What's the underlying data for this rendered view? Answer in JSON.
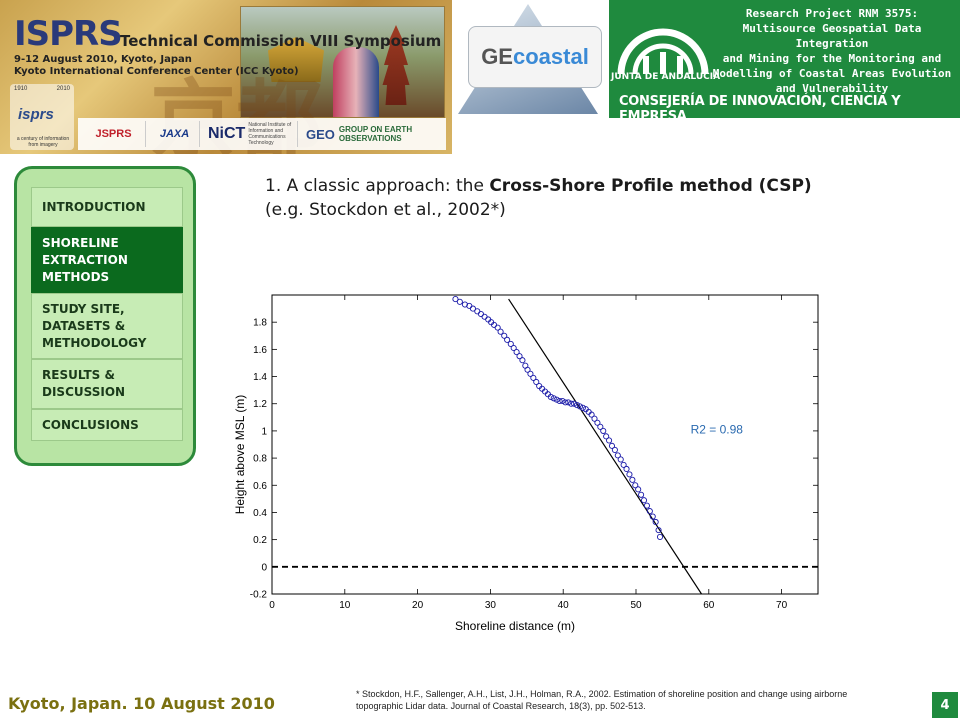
{
  "header": {
    "isprs_title": "ISPRS",
    "isprs_subtitle": "Technical Commission VIII Symposium",
    "isprs_dates": "9-12 August 2010, Kyoto, Japan",
    "isprs_venue": "Kyoto International Conference Center (ICC Kyoto)",
    "isprs_logo_name": "isprs",
    "isprs_logo_years": [
      "1910",
      "2010"
    ],
    "isprs_logo_motto": "a century of information from imagery",
    "kanji_watermark": "京都",
    "sponsors": [
      "JSPRS",
      "JAXA",
      "NiCT",
      "GROUP ON EARTH OBSERVATIONS"
    ],
    "sponsor_nict_caption": "National Institute of Information and Communications Technology",
    "sponsor_geo_mark": "GEO",
    "gecoastal_logo": [
      "GE",
      "coastal"
    ],
    "junta_name": "JUNTA DE ANDALUCIA",
    "project_lines": [
      "Research Project RNM 3575:",
      "Multisource Geospatial Data Integration",
      "and Mining for  the Monitoring and",
      "Modelling of Coastal Areas Evolution",
      "and  Vulnerability"
    ],
    "department": "CONSEJERÍA DE INNOVACIÓN, CIENCIA Y EMPRESA"
  },
  "nav": {
    "items": [
      {
        "label": "INTRODUCTION",
        "active": false
      },
      {
        "label": "SHORELINE EXTRACTION METHODS",
        "active": true
      },
      {
        "label": "STUDY SITE, DATASETS & METHODOLOGY",
        "active": false
      },
      {
        "label": "RESULTS & DISCUSSION",
        "active": false
      },
      {
        "label": "CONCLUSIONS",
        "active": false
      }
    ]
  },
  "title": {
    "prefix": "1. A  classic approach: the ",
    "bold": "Cross-Shore Profile method (CSP)",
    "suffix": " (e.g. Stockdon et al., 2002*)"
  },
  "chart_data": {
    "type": "scatter",
    "xlabel": "Shoreline distance (m)",
    "ylabel": "Height above MSL (m)",
    "xlim": [
      0,
      75
    ],
    "ylim": [
      -0.2,
      2.0
    ],
    "xticks": [
      0,
      10,
      20,
      30,
      40,
      50,
      60,
      70
    ],
    "yticks": [
      -0.2,
      0,
      0.2,
      0.4,
      0.6,
      0.8,
      1,
      1.2,
      1.4,
      1.6,
      1.8
    ],
    "annotation": "R2 = 0.98",
    "annotation_sup": "2",
    "grid": false,
    "points": [
      [
        25.2,
        1.97
      ],
      [
        25.8,
        1.95
      ],
      [
        26.5,
        1.93
      ],
      [
        27.1,
        1.92
      ],
      [
        27.6,
        1.9
      ],
      [
        28.2,
        1.88
      ],
      [
        28.7,
        1.86
      ],
      [
        29.2,
        1.84
      ],
      [
        29.7,
        1.82
      ],
      [
        30.1,
        1.8
      ],
      [
        30.5,
        1.78
      ],
      [
        31.0,
        1.76
      ],
      [
        31.4,
        1.73
      ],
      [
        31.9,
        1.7
      ],
      [
        32.3,
        1.67
      ],
      [
        32.8,
        1.64
      ],
      [
        33.2,
        1.61
      ],
      [
        33.6,
        1.58
      ],
      [
        34.0,
        1.55
      ],
      [
        34.4,
        1.52
      ],
      [
        34.8,
        1.48
      ],
      [
        35.1,
        1.45
      ],
      [
        35.5,
        1.42
      ],
      [
        35.9,
        1.39
      ],
      [
        36.3,
        1.36
      ],
      [
        36.7,
        1.33
      ],
      [
        37.1,
        1.31
      ],
      [
        37.5,
        1.29
      ],
      [
        37.9,
        1.27
      ],
      [
        38.3,
        1.25
      ],
      [
        38.7,
        1.24
      ],
      [
        39.1,
        1.23
      ],
      [
        39.5,
        1.22
      ],
      [
        39.9,
        1.22
      ],
      [
        40.3,
        1.21
      ],
      [
        40.7,
        1.21
      ],
      [
        41.1,
        1.2
      ],
      [
        41.5,
        1.2
      ],
      [
        41.9,
        1.19
      ],
      [
        42.3,
        1.18
      ],
      [
        42.7,
        1.17
      ],
      [
        43.1,
        1.16
      ],
      [
        43.5,
        1.14
      ],
      [
        43.9,
        1.12
      ],
      [
        44.3,
        1.09
      ],
      [
        44.7,
        1.06
      ],
      [
        45.1,
        1.03
      ],
      [
        45.5,
        1.0
      ],
      [
        45.9,
        0.96
      ],
      [
        46.3,
        0.93
      ],
      [
        46.7,
        0.89
      ],
      [
        47.1,
        0.86
      ],
      [
        47.5,
        0.82
      ],
      [
        47.9,
        0.79
      ],
      [
        48.3,
        0.75
      ],
      [
        48.7,
        0.72
      ],
      [
        49.1,
        0.68
      ],
      [
        49.5,
        0.64
      ],
      [
        49.9,
        0.6
      ],
      [
        50.3,
        0.57
      ],
      [
        50.7,
        0.53
      ],
      [
        51.1,
        0.49
      ],
      [
        51.5,
        0.45
      ],
      [
        51.9,
        0.41
      ],
      [
        52.3,
        0.37
      ],
      [
        52.7,
        0.33
      ],
      [
        53.1,
        0.27
      ],
      [
        53.3,
        0.22
      ]
    ],
    "fit_line": {
      "x": [
        32.5,
        59.0
      ],
      "y": [
        1.97,
        -0.2
      ]
    },
    "reference_line": {
      "y": 0,
      "style": "dashed"
    },
    "marker_color": "#1a1aa8",
    "line_color": "#000000"
  },
  "footer": {
    "place": "Kyoto, Japan. 10 August 2010",
    "reference": "* Stockdon, H.F., Sallenger, A.H., List, J.H., Holman, R.A., 2002. Estimation of shoreline position and change using airborne topographic Lidar data. Journal of Coastal Research, 18(3), pp. 502-513.",
    "page": "4"
  },
  "colors": {
    "green_dark": "#1f8a3e",
    "nav_active": "#0b6a1e",
    "nav_bg": "#b8e4a4",
    "footer_place": "#7a7010"
  }
}
